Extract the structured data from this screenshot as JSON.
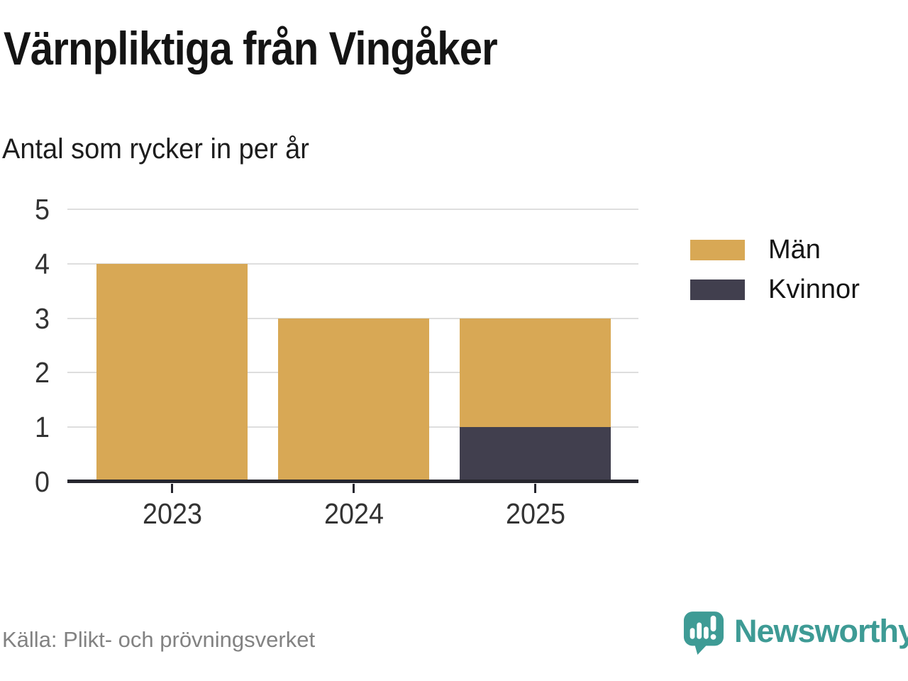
{
  "chart_data": {
    "type": "bar",
    "stacked": true,
    "title": "Värnpliktiga från Vingåker",
    "subtitle": "Antal som rycker in per år",
    "categories": [
      "2023",
      "2024",
      "2025"
    ],
    "series": [
      {
        "name": "Män",
        "color": "#D8A855",
        "values": [
          4,
          3,
          2
        ]
      },
      {
        "name": "Kvinnor",
        "color": "#413F4E",
        "values": [
          0,
          0,
          1
        ]
      }
    ],
    "stack_order_bottom_to_top": [
      "Kvinnor",
      "Män"
    ],
    "xlabel": "",
    "ylabel": "",
    "ylim": [
      0,
      5
    ],
    "yticks": [
      0,
      1,
      2,
      3,
      4,
      5
    ],
    "grid": true,
    "legend_position": "right"
  },
  "colors": {
    "axis": "#26262e",
    "gridline": "#dedede",
    "tick_label": "#333333",
    "brand_teal": "#3E9B95"
  },
  "footer": {
    "source": "Källa: Plikt- och prövningsverket",
    "brand": "Newsworthy"
  }
}
